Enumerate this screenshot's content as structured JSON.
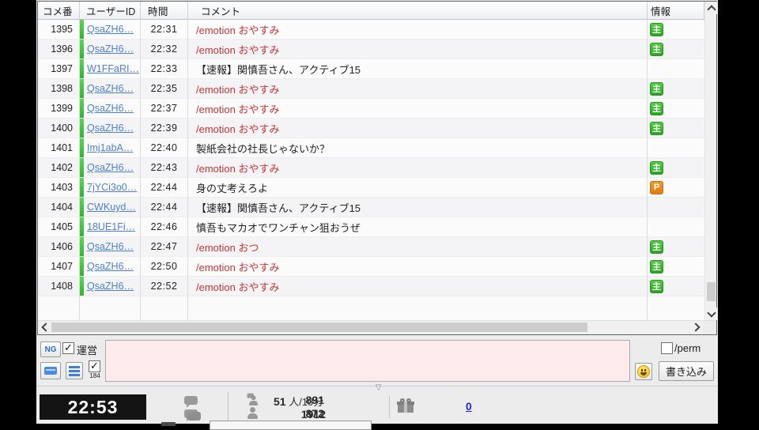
{
  "table": {
    "columns": {
      "num": "コメ番",
      "user": "ユーザーID",
      "time": "時間",
      "comment": "コメント",
      "info": "情報"
    },
    "badge_labels": {
      "owner": "主",
      "premium": "P"
    },
    "rows": [
      {
        "num": "1395",
        "user": "QsaZH6…",
        "time": "22:31",
        "comment": "/emotion おやすみ",
        "emotion": true,
        "badge": "owner"
      },
      {
        "num": "1396",
        "user": "QsaZH6…",
        "time": "22:32",
        "comment": "/emotion おやすみ",
        "emotion": true,
        "badge": "owner"
      },
      {
        "num": "1397",
        "user": "W1FFaRI…",
        "time": "22:33",
        "comment": "【速報】関慎吾さん、アクティブ15",
        "emotion": false,
        "badge": ""
      },
      {
        "num": "1398",
        "user": "QsaZH6…",
        "time": "22:35",
        "comment": "/emotion おやすみ",
        "emotion": true,
        "badge": "owner"
      },
      {
        "num": "1399",
        "user": "QsaZH6…",
        "time": "22:37",
        "comment": "/emotion おやすみ",
        "emotion": true,
        "badge": "owner"
      },
      {
        "num": "1400",
        "user": "QsaZH6…",
        "time": "22:39",
        "comment": "/emotion おやすみ",
        "emotion": true,
        "badge": "owner"
      },
      {
        "num": "1401",
        "user": "Imj1abA…",
        "time": "22:40",
        "comment": "製紙会社の社長じゃないか？",
        "emotion": false,
        "badge": ""
      },
      {
        "num": "1402",
        "user": "QsaZH6…",
        "time": "22:43",
        "comment": "/emotion おやすみ",
        "emotion": true,
        "badge": "owner"
      },
      {
        "num": "1403",
        "user": "7jYCi3o0…",
        "time": "22:44",
        "comment": "身の丈考えろよ",
        "emotion": false,
        "badge": "premium"
      },
      {
        "num": "1404",
        "user": "CWKuyd…",
        "time": "22:44",
        "comment": "【速報】関慎吾さん、アクティブ15",
        "emotion": false,
        "badge": ""
      },
      {
        "num": "1405",
        "user": "18UE1Fi…",
        "time": "22:46",
        "comment": "慎吾もマカオでワンチャン狙おうぜ",
        "emotion": false,
        "badge": ""
      },
      {
        "num": "1406",
        "user": "QsaZH6…",
        "time": "22:47",
        "comment": "/emotion おつ",
        "emotion": true,
        "badge": "owner"
      },
      {
        "num": "1407",
        "user": "QsaZH6…",
        "time": "22:50",
        "comment": "/emotion おやすみ",
        "emotion": true,
        "badge": "owner"
      },
      {
        "num": "1408",
        "user": "QsaZH6…",
        "time": "22:52",
        "comment": "/emotion おやすみ",
        "emotion": true,
        "badge": "owner"
      }
    ]
  },
  "compose": {
    "ng_label": "NG",
    "operator_label": "運営",
    "operator_checked": true,
    "anon_label": "184",
    "anon_checked": true,
    "input_value": "",
    "perm_label": "/perm",
    "perm_checked": false,
    "write_label": "書き込み"
  },
  "status": {
    "clock": "22:53",
    "comment_count": "891",
    "comment_count2": "872",
    "rate_value": "51",
    "rate_unit": "人/10分",
    "visitor_count": "1912",
    "gift_count": "0",
    "collapse_glyph": "▽"
  },
  "colors": {
    "owner_badge": "#3db32d",
    "premium_badge": "#e8871e",
    "user_link": "#4f7fd0",
    "emotion_text": "#c63434",
    "input_bg": "#fdeaea",
    "activity_bar": "#3ecb3a"
  }
}
